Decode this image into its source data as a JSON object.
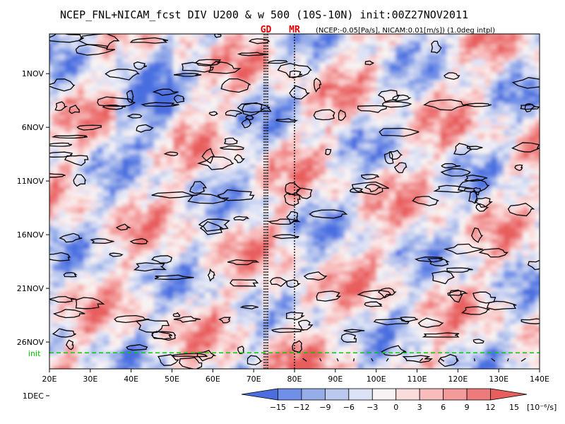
{
  "chart_data": {
    "type": "heatmap",
    "title": "NCEP_FNL+NICAM_fcst DIV U200 & w 500 (10S-10N) init:00Z27NOV2011",
    "subtitle": "(NCEP:-0.05[Pa/s], NICAM:0.01[m/s]) (1.0deg intpl)",
    "markers": [
      {
        "label": "GD",
        "lon": 73
      },
      {
        "label": "MR",
        "lon": 80
      }
    ],
    "x_ticks": [
      "20E",
      "30E",
      "40E",
      "50E",
      "60E",
      "70E",
      "80E",
      "90E",
      "100E",
      "110E",
      "120E",
      "130E",
      "140E"
    ],
    "x_tick_values": [
      20,
      30,
      40,
      50,
      60,
      70,
      80,
      90,
      100,
      110,
      120,
      130,
      140
    ],
    "xlim": [
      20,
      140
    ],
    "y_ticks": [
      "1NOV",
      "6NOV",
      "11NOV",
      "16NOV",
      "21NOV",
      "26NOV",
      "1DEC"
    ],
    "y_tick_days": [
      1,
      6,
      11,
      16,
      21,
      26,
      31
    ],
    "ylim_days": [
      28.5,
      -2.7
    ],
    "init_label": "init",
    "init_day": 27,
    "colorbar": {
      "levels": [
        "-15",
        "-12",
        "-9",
        "-6",
        "-3",
        "0",
        "3",
        "6",
        "9",
        "12",
        "15"
      ],
      "unit": "[10⁻⁶/s]",
      "colors": [
        "#4a6ee0",
        "#6f8fe8",
        "#97ade8",
        "#bcc9ef",
        "#dde3f6",
        "#f8f3f3",
        "#fbdcdc",
        "#f8bcbc",
        "#f39a9a",
        "#ee7b7b",
        "#e85d5d"
      ]
    }
  }
}
